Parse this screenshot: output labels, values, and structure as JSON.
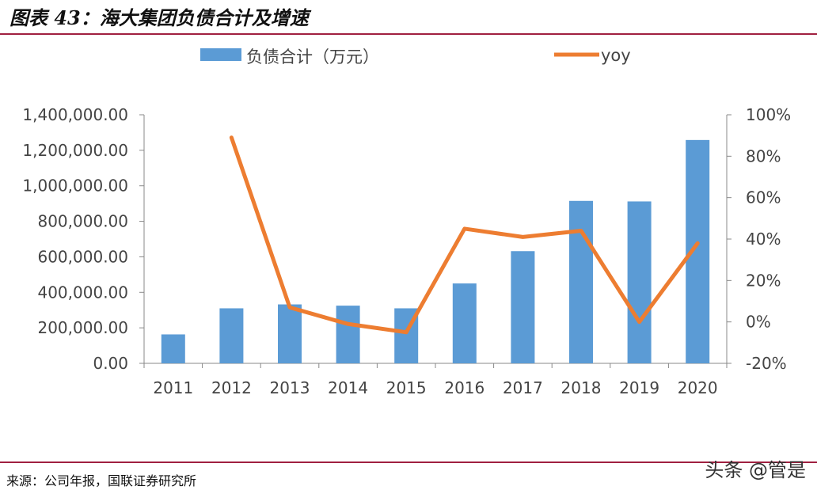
{
  "header": {
    "figure_title": "图表 43：海大集团负债合计及增速"
  },
  "footer": {
    "source": "来源：公司年报，国联证券研究所",
    "watermark": "头条 @管是"
  },
  "colors": {
    "bar": "#5b9bd5",
    "line": "#ed7d31",
    "rule": "#a02040",
    "axis": "#888888"
  },
  "chart_data": {
    "type": "bar",
    "title": "",
    "categories": [
      "2011",
      "2012",
      "2013",
      "2014",
      "2015",
      "2016",
      "2017",
      "2018",
      "2019",
      "2020"
    ],
    "series": [
      {
        "name": "负债合计（万元）",
        "type": "bar",
        "axis": "left",
        "values": [
          163000,
          310000,
          332000,
          325000,
          310000,
          450000,
          632000,
          915000,
          912000,
          1258000
        ]
      },
      {
        "name": "yoy",
        "type": "line",
        "axis": "right",
        "values": [
          null,
          0.89,
          0.07,
          -0.01,
          -0.05,
          0.45,
          0.41,
          0.44,
          0.0,
          0.38
        ]
      }
    ],
    "y_left": {
      "min": 0,
      "max": 1400000,
      "ticks": [
        "0.00",
        "200,000.00",
        "400,000.00",
        "600,000.00",
        "800,000.00",
        "1,000,000.00",
        "1,200,000.00",
        "1,400,000.00"
      ]
    },
    "y_right": {
      "min": -0.2,
      "max": 1.0,
      "ticks": [
        "-20%",
        "0%",
        "20%",
        "40%",
        "60%",
        "80%",
        "100%"
      ]
    },
    "grid": false,
    "legend": "top"
  }
}
